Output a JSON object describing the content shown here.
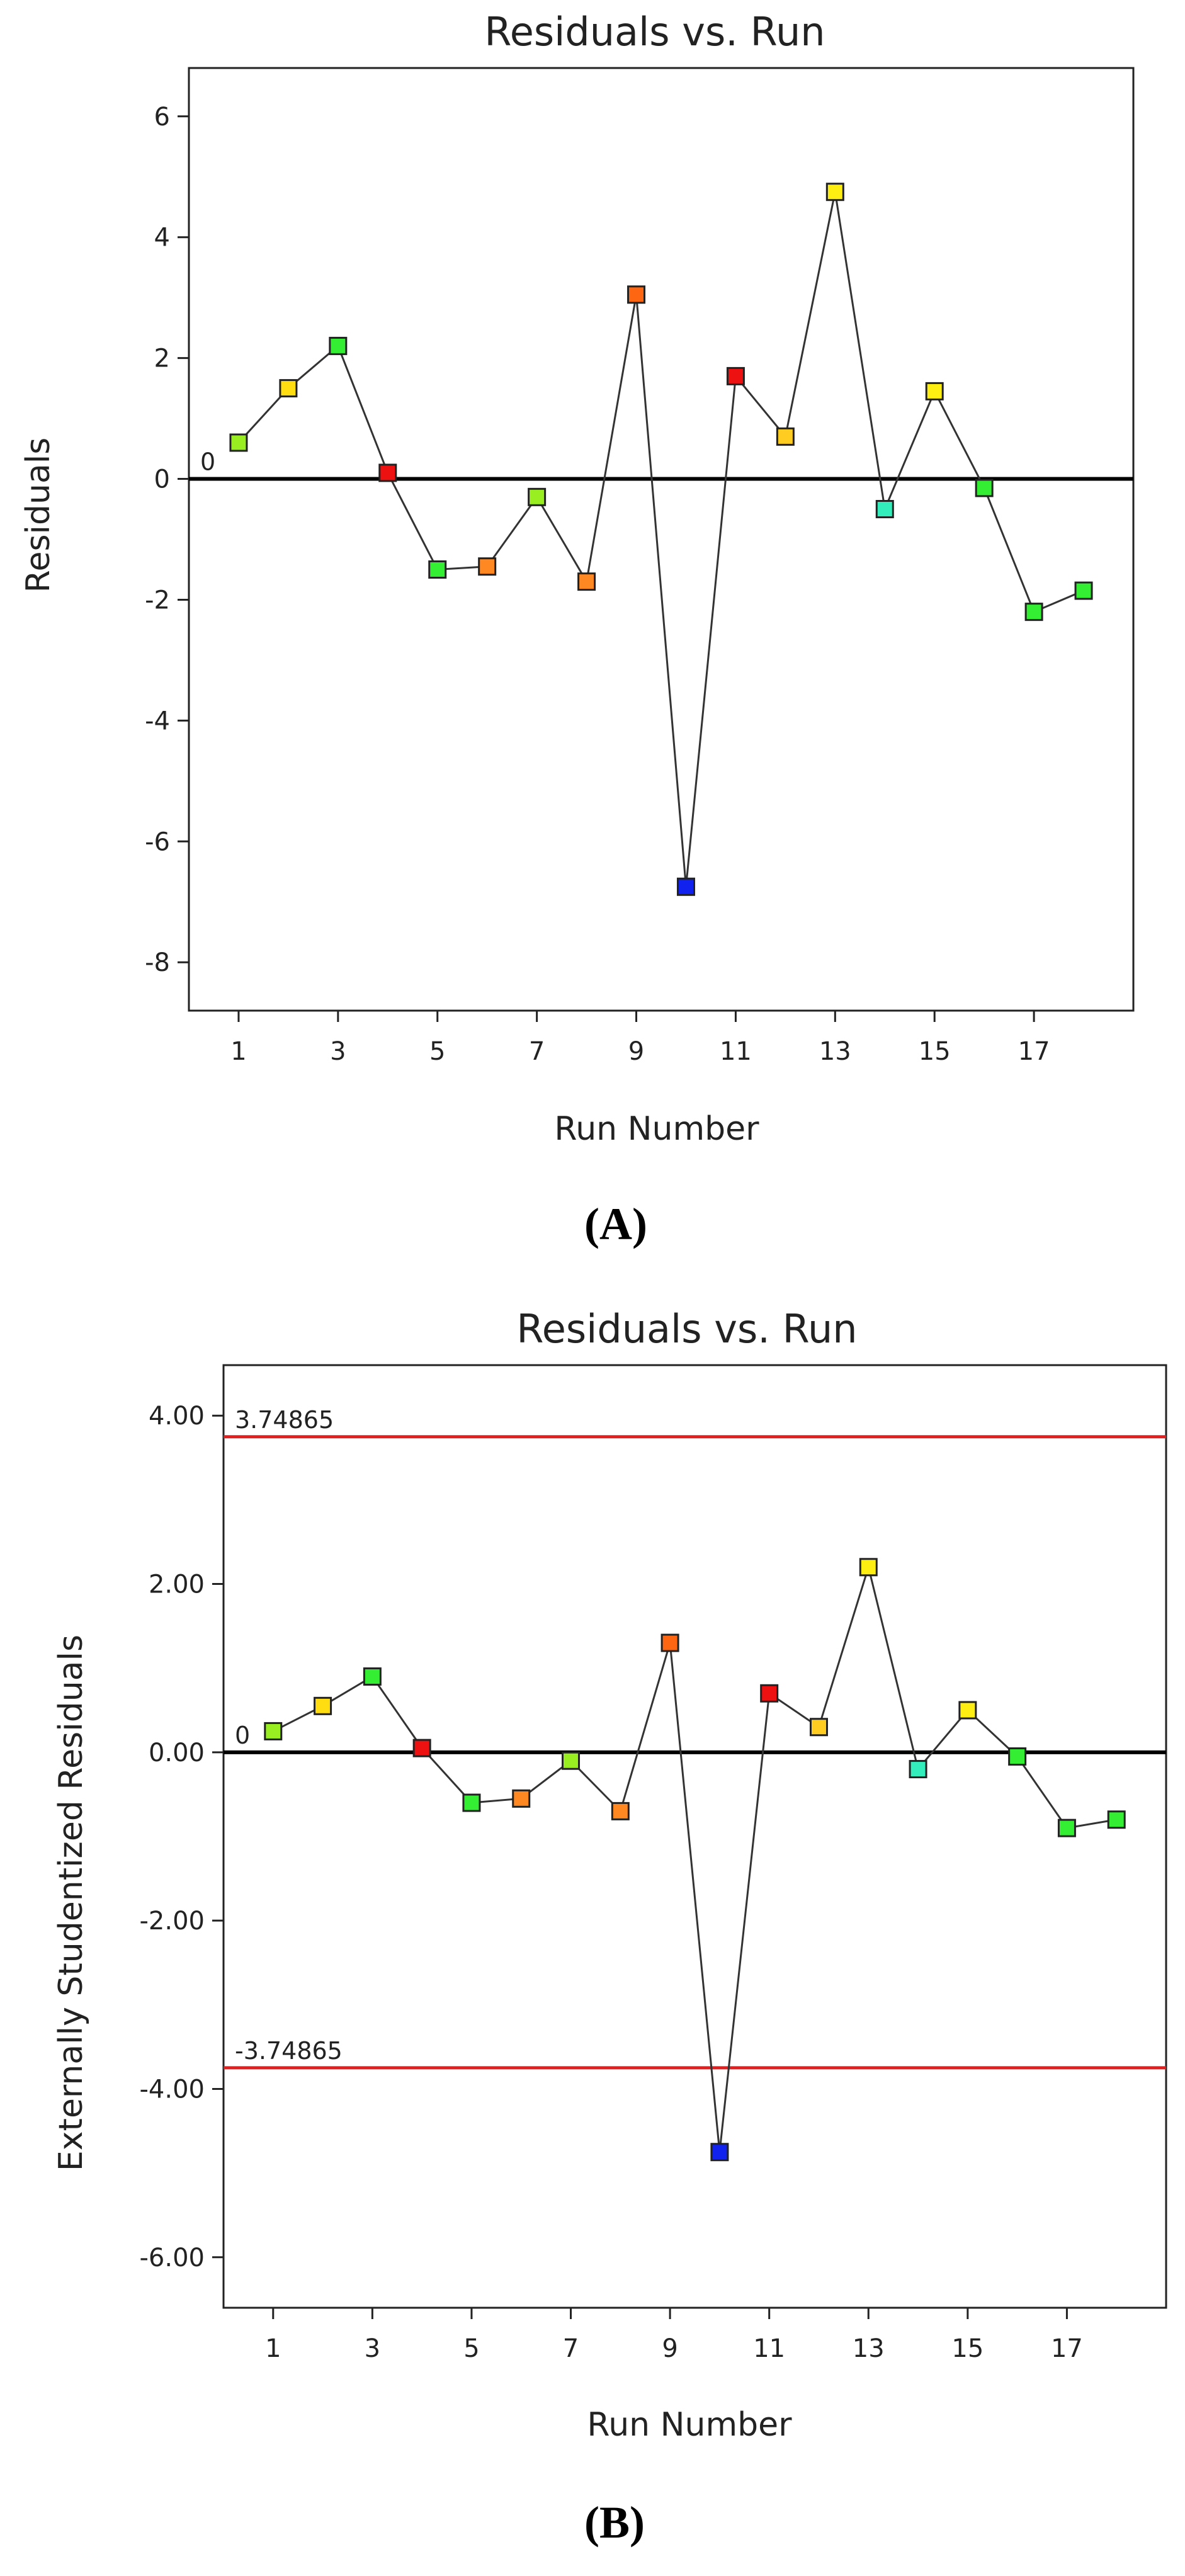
{
  "chart_data": [
    {
      "type": "scatter",
      "panel_label": "A",
      "title": "Residuals vs. Run",
      "xlabel": "Run Number",
      "ylabel": "Residuals",
      "xlim": [
        0,
        19
      ],
      "ylim": [
        -8.8,
        6.8
      ],
      "x_ticks": [
        "1",
        "3",
        "5",
        "7",
        "9",
        "11",
        "13",
        "15",
        "17"
      ],
      "y_ticks": [
        "-8",
        "-6",
        "-4",
        "-2",
        "0",
        "2",
        "4",
        "6"
      ],
      "reference_lines": [
        {
          "value": 0,
          "label": "0",
          "color": "#000000"
        }
      ],
      "connect_points": true,
      "grid": false,
      "points": [
        {
          "x": 1,
          "y": 0.6,
          "color": "#99ee22"
        },
        {
          "x": 2,
          "y": 1.5,
          "color": "#ffdd11"
        },
        {
          "x": 3,
          "y": 2.2,
          "color": "#33ee33"
        },
        {
          "x": 4,
          "y": 0.1,
          "color": "#ee1111"
        },
        {
          "x": 5,
          "y": -1.5,
          "color": "#33ee33"
        },
        {
          "x": 6,
          "y": -1.45,
          "color": "#ff8822"
        },
        {
          "x": 7,
          "y": -0.3,
          "color": "#99ee22"
        },
        {
          "x": 8,
          "y": -1.7,
          "color": "#ff8822"
        },
        {
          "x": 9,
          "y": 3.05,
          "color": "#ff6611"
        },
        {
          "x": 10,
          "y": -6.75,
          "color": "#1122ee"
        },
        {
          "x": 11,
          "y": 1.7,
          "color": "#ee1111"
        },
        {
          "x": 12,
          "y": 0.7,
          "color": "#ffcc22"
        },
        {
          "x": 13,
          "y": 4.75,
          "color": "#ffee11"
        },
        {
          "x": 14,
          "y": -0.5,
          "color": "#33eebb"
        },
        {
          "x": 15,
          "y": 1.45,
          "color": "#ffee11"
        },
        {
          "x": 16,
          "y": -0.15,
          "color": "#33ee33"
        },
        {
          "x": 17,
          "y": -2.2,
          "color": "#33ee33"
        },
        {
          "x": 18,
          "y": -1.85,
          "color": "#33ee33"
        }
      ]
    },
    {
      "type": "scatter",
      "panel_label": "B",
      "title": "Residuals vs. Run",
      "xlabel": "Run Number",
      "ylabel": "Externally Studentized Residuals",
      "xlim": [
        0,
        19
      ],
      "ylim": [
        -6.6,
        4.6
      ],
      "x_ticks": [
        "1",
        "3",
        "5",
        "7",
        "9",
        "11",
        "13",
        "15",
        "17"
      ],
      "y_ticks": [
        "-6.00",
        "-4.00",
        "-2.00",
        "0.00",
        "2.00",
        "4.00"
      ],
      "reference_lines": [
        {
          "value": 0,
          "label": "0",
          "color": "#000000"
        },
        {
          "value": 3.74865,
          "label": "3.74865",
          "color": "#e02020"
        },
        {
          "value": -3.74865,
          "label": "-3.74865",
          "color": "#e02020"
        }
      ],
      "connect_points": true,
      "grid": false,
      "points": [
        {
          "x": 1,
          "y": 0.25,
          "color": "#99ee22"
        },
        {
          "x": 2,
          "y": 0.55,
          "color": "#ffdd11"
        },
        {
          "x": 3,
          "y": 0.9,
          "color": "#33ee33"
        },
        {
          "x": 4,
          "y": 0.05,
          "color": "#ee1111"
        },
        {
          "x": 5,
          "y": -0.6,
          "color": "#33ee33"
        },
        {
          "x": 6,
          "y": -0.55,
          "color": "#ff8822"
        },
        {
          "x": 7,
          "y": -0.1,
          "color": "#99ee22"
        },
        {
          "x": 8,
          "y": -0.7,
          "color": "#ff8822"
        },
        {
          "x": 9,
          "y": 1.3,
          "color": "#ff6611"
        },
        {
          "x": 10,
          "y": -4.75,
          "color": "#1122ee"
        },
        {
          "x": 11,
          "y": 0.7,
          "color": "#ee1111"
        },
        {
          "x": 12,
          "y": 0.3,
          "color": "#ffcc22"
        },
        {
          "x": 13,
          "y": 2.2,
          "color": "#ffee11"
        },
        {
          "x": 14,
          "y": -0.2,
          "color": "#33eebb"
        },
        {
          "x": 15,
          "y": 0.5,
          "color": "#ffee11"
        },
        {
          "x": 16,
          "y": -0.05,
          "color": "#33ee33"
        },
        {
          "x": 17,
          "y": -0.9,
          "color": "#33ee33"
        },
        {
          "x": 18,
          "y": -0.8,
          "color": "#33ee33"
        }
      ]
    }
  ]
}
